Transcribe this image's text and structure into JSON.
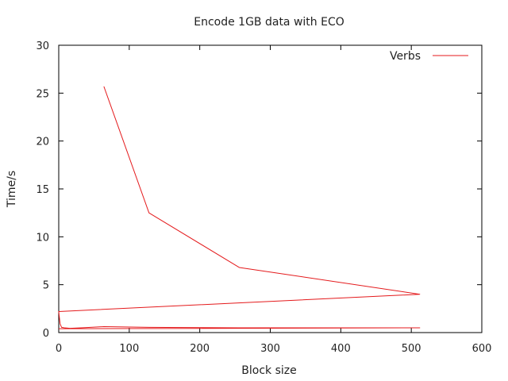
{
  "chart_data": {
    "type": "line",
    "title": "Encode 1GB data with ECO",
    "xlabel": "Block size",
    "ylabel": "Time/s",
    "xlim": [
      0,
      600
    ],
    "ylim": [
      0,
      30
    ],
    "x_ticks": [
      0,
      100,
      200,
      300,
      400,
      500,
      600
    ],
    "y_ticks": [
      0,
      5,
      10,
      15,
      20,
      25,
      30
    ],
    "grid": false,
    "legend_position": "top-right",
    "series": [
      {
        "name": "Verbs",
        "color": "#e41a1c",
        "points": [
          [
            64,
            25.7
          ],
          [
            128,
            12.5
          ],
          [
            256,
            6.8
          ],
          [
            512,
            4.0
          ],
          [
            0,
            2.2
          ],
          [
            1,
            1.5
          ],
          [
            2,
            0.9
          ],
          [
            4,
            0.55
          ],
          [
            8,
            0.5
          ],
          [
            16,
            0.45
          ],
          [
            32,
            0.5
          ],
          [
            64,
            0.62
          ],
          [
            128,
            0.55
          ],
          [
            256,
            0.5
          ],
          [
            512,
            0.5
          ],
          [
            0,
            0.4
          ]
        ]
      }
    ]
  }
}
